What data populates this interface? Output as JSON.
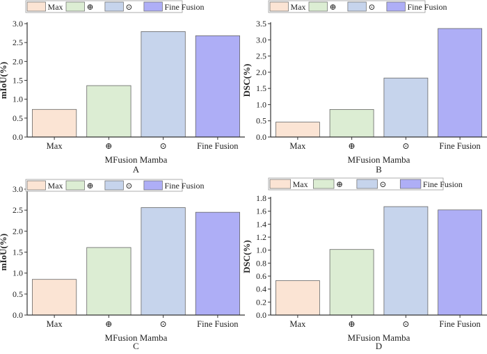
{
  "colors": {
    "Max": "#fbe4d4",
    "oplus": "#dcedd3",
    "odot": "#c6d4ec",
    "Fine Fusion": "#aeaef6",
    "bar_stroke": "#666666",
    "axis": "#333333"
  },
  "chart_data": [
    {
      "type": "bar",
      "panel_label": "A",
      "categories": [
        "Max",
        "⊕",
        "⊙",
        "Fine Fusion"
      ],
      "values": [
        0.73,
        1.36,
        2.79,
        2.68
      ],
      "xlabel": "MFusion Mamba",
      "ylabel": "mIoU(%)",
      "ylim": [
        0,
        3.0
      ],
      "yticks": [
        "0.0",
        "0.5",
        "1.0",
        "1.5",
        "2.0",
        "2.5",
        "3.0"
      ],
      "legend": [
        "Max",
        "⊕",
        "⊙",
        "Fine Fusion"
      ],
      "legend_position": "top-left",
      "grid": false
    },
    {
      "type": "bar",
      "panel_label": "B",
      "categories": [
        "Max",
        "⊕",
        "⊙",
        "Fine Fusion"
      ],
      "values": [
        0.46,
        0.85,
        1.82,
        3.35
      ],
      "xlabel": "MFusion Mamba",
      "ylabel": "DSC(%)",
      "ylim": [
        0,
        3.5
      ],
      "yticks": [
        "0.0",
        "0.5",
        "1.0",
        "1.5",
        "2.0",
        "2.5",
        "3.0",
        "3.5"
      ],
      "legend": [
        "Max",
        "⊕",
        "⊙",
        "Fine Fusion"
      ],
      "legend_position": "top-left",
      "grid": false
    },
    {
      "type": "bar",
      "panel_label": "C",
      "categories": [
        "Max",
        "⊕",
        "⊙",
        "Fine Fusion"
      ],
      "values": [
        0.85,
        1.61,
        2.56,
        2.45
      ],
      "xlabel": "MFusion Mamba",
      "ylabel": "mIoU(%)",
      "ylim": [
        0,
        3.0
      ],
      "yticks": [
        "0.0",
        "0.5",
        "1.0",
        "1.5",
        "2.0",
        "2.5",
        "3.0"
      ],
      "legend": [
        "Max",
        "⊕",
        "⊙",
        "Fine Fusion"
      ],
      "legend_position": "top-left",
      "grid": false
    },
    {
      "type": "bar",
      "panel_label": "D",
      "categories": [
        "Max",
        "⊕",
        "⊙",
        "Fine Fusion"
      ],
      "values": [
        0.53,
        1.01,
        1.67,
        1.62
      ],
      "xlabel": "MFusion Mamba",
      "ylabel": "DSC(%)",
      "ylim": [
        0,
        1.8
      ],
      "yticks": [
        "0.0",
        "0.2",
        "0.4",
        "0.6",
        "0.8",
        "1.0",
        "1.2",
        "1.4",
        "1.6",
        "1.8"
      ],
      "legend": [
        "Max",
        "⊕",
        "⊙",
        "Fine Fusion"
      ],
      "legend_position": "top-left",
      "grid": false
    }
  ]
}
